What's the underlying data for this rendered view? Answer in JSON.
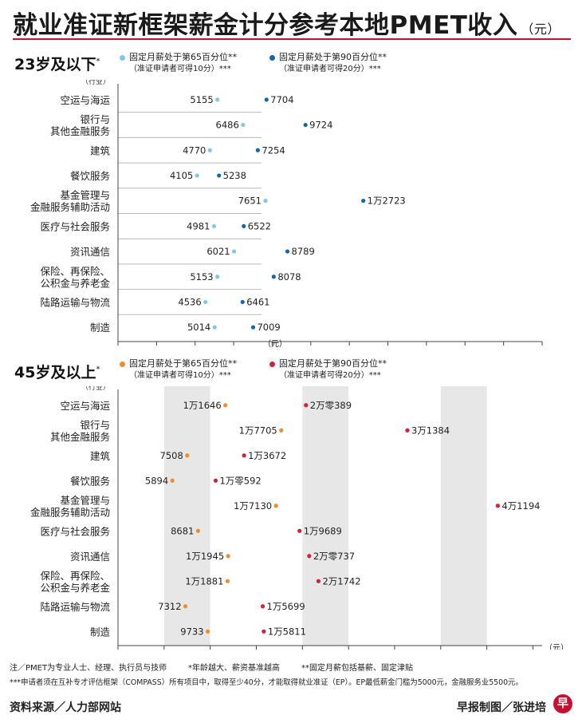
{
  "title": "就业准证新框架薪金计分参考本地PMET收入",
  "title_unit": "（元）",
  "charts_meta": {
    "unit_label": "（元）",
    "industry_header": "（行业）"
  },
  "colors": {
    "accent": "#c8102e",
    "young_p65": "#7ec8ee",
    "young_p90": "#1167b1",
    "old_p65": "#f28c28",
    "old_p90": "#d81e3a"
  },
  "chart_data": [
    {
      "type": "dumbbell",
      "section_title": "23岁及以下",
      "section_mark": "*",
      "legend": [
        {
          "label": "固定月薪处于第65百分位**",
          "sub": "（准证申请者可得10分）***"
        },
        {
          "label": "固定月薪处于第90百分位**",
          "sub": "（准证申请者可得20分）***"
        }
      ],
      "categories": [
        "空运与海运",
        "银行与\n其他金融服务",
        "建筑",
        "餐饮服务",
        "基金管理与\n金融服务辅助活动",
        "医疗与社会服务",
        "资讯通信",
        "保险、再保险、\n公积金与养老金",
        "陆路运输与物流",
        "制造"
      ],
      "series": [
        {
          "name": "第65百分位",
          "values": [
            5155,
            6486,
            4770,
            4105,
            7651,
            4981,
            6021,
            5153,
            4536,
            5014
          ],
          "labels": [
            "5155",
            "6486",
            "4770",
            "4105",
            "7651",
            "4981",
            "6021",
            "5153",
            "4536",
            "5014"
          ]
        },
        {
          "name": "第90百分位",
          "values": [
            7704,
            9724,
            7254,
            5238,
            12723,
            6522,
            8789,
            8078,
            6461,
            7009
          ],
          "labels": [
            "7704",
            "9724",
            "7254",
            "5238",
            "1万2723",
            "6522",
            "8789",
            "8078",
            "6461",
            "7009"
          ]
        }
      ],
      "xlim": [
        0,
        22000
      ],
      "shaded_bands": false
    },
    {
      "type": "dumbbell",
      "section_title": "45岁及以上",
      "section_mark": "*",
      "legend": [
        {
          "label": "固定月薪处于第65百分位**",
          "sub": "（准证申请者可得10分）***"
        },
        {
          "label": "固定月薪处于第90百分位**",
          "sub": "（准证申请者可得20分）***"
        }
      ],
      "categories": [
        "空运与海运",
        "银行与\n其他金融服务",
        "建筑",
        "餐饮服务",
        "基金管理与\n金融服务辅助活动",
        "医疗与社会服务",
        "资讯通信",
        "保险、再保险、\n公积金与养老金",
        "陆路运输与物流",
        "制造"
      ],
      "series": [
        {
          "name": "第65百分位",
          "values": [
            11646,
            17705,
            7508,
            5894,
            17130,
            8681,
            11945,
            11881,
            7312,
            9733
          ],
          "labels": [
            "1万1646",
            "1万7705",
            "7508",
            "5894",
            "1万7130",
            "8681",
            "1万1945",
            "1万1881",
            "7312",
            "9733"
          ]
        },
        {
          "name": "第90百分位",
          "values": [
            20389,
            31384,
            13672,
            10592,
            41194,
            19689,
            20737,
            21742,
            15699,
            15811
          ],
          "labels": [
            "2万零389",
            "3万1384",
            "1万3672",
            "1万零592",
            "4万1194",
            "1万9689",
            "2万零737",
            "2万1742",
            "1万5699",
            "1万5811"
          ]
        }
      ],
      "xlim": [
        0,
        46000
      ],
      "shaded_bands": true
    }
  ],
  "notes": [
    "注／PMET为专业人士、经理、执行员与技师",
    "*年龄越大、薪资基准越高",
    "**固定月薪包括基薪、固定津贴",
    "***申请者须在互补专才评估框架（COMPASS）所有项目中，取得至少40分，才能取得就业准证（EP）。EP最低薪金门槛为5000元，金融服务业5500元。"
  ],
  "footer": {
    "source": "资料来源／人力部网站",
    "credit": "早报制图／张进培",
    "logo_char": "早"
  }
}
